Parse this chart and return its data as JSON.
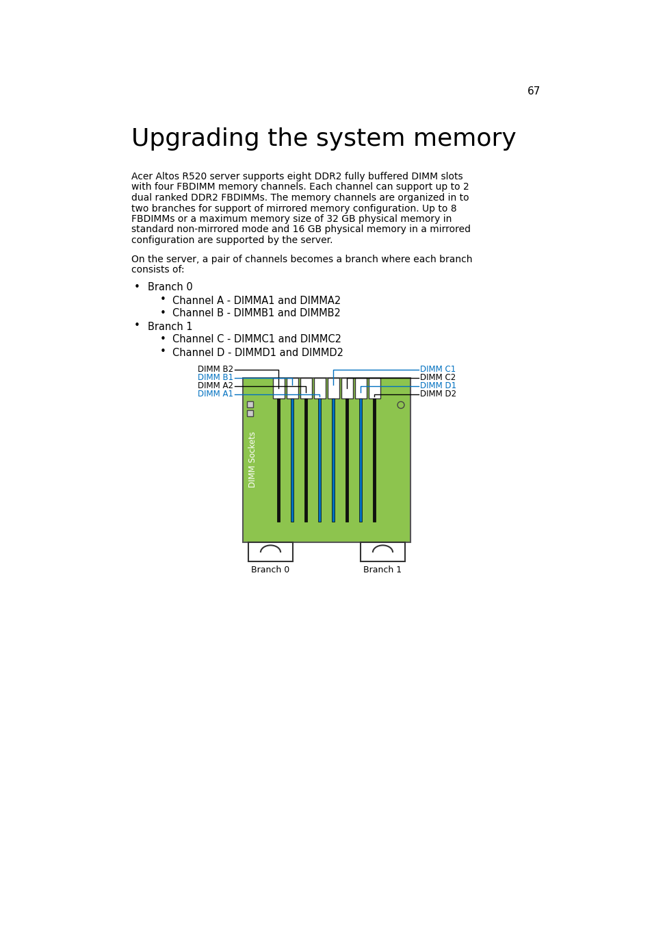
{
  "page_number": "67",
  "title": "Upgrading the system memory",
  "body_text_lines": [
    "Acer Altos R520 server supports eight DDR2 fully buffered DIMM slots",
    "with four FBDIMM memory channels. Each channel can support up to 2",
    "dual ranked DDR2 FBDIMMs. The memory channels are organized in to",
    "two branches for support of mirrored memory configuration. Up to 8",
    "FBDIMMs or a maximum memory size of 32 GB physical memory in",
    "standard non-mirrored mode and 16 GB physical memory in a mirrored",
    "configuration are supported by the server."
  ],
  "para2_lines": [
    "On the server, a pair of channels becomes a branch where each branch",
    "consists of:"
  ],
  "bullets": [
    {
      "level": 1,
      "text": "Branch 0"
    },
    {
      "level": 2,
      "text": "Channel A - DIMMA1 and DIMMA2"
    },
    {
      "level": 2,
      "text": "Channel B - DIMMB1 and DIMMB2"
    },
    {
      "level": 1,
      "text": "Branch 1"
    },
    {
      "level": 2,
      "text": "Channel C - DIMMC1 and DIMMC2"
    },
    {
      "level": 2,
      "text": "Channel D - DIMMD1 and DIMMD2"
    }
  ],
  "branch_label_0": "Branch 0",
  "branch_label_1": "Branch 1",
  "dimm_sockets_label": "DIMM Sockets",
  "bg_color": "#ffffff",
  "text_color": "#000000",
  "blue_color": "#0070C0",
  "green_color": "#8DC44E",
  "title_fontsize": 26,
  "body_fontsize": 10,
  "bullet_fontsize": 10.5
}
